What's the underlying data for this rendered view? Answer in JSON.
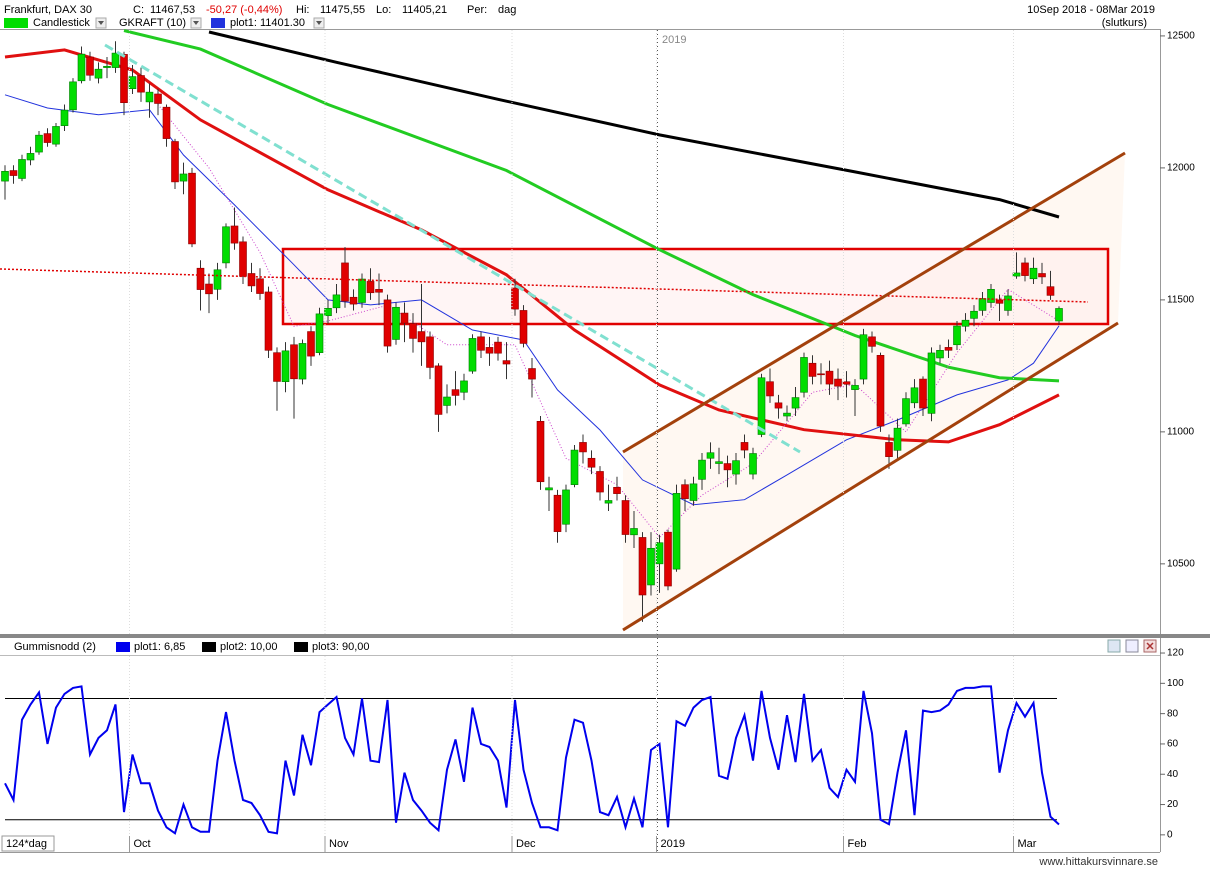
{
  "header": {
    "title": "Frankfurt, DAX 30",
    "close_label": "C:",
    "close": "11467,53",
    "change": "-50,27 (-0,44%)",
    "high_label": "Hi:",
    "high": "11475,55",
    "low_label": "Lo:",
    "low": "11405,21",
    "period_label": "Per:",
    "period": "dag",
    "date_range": "10Sep 2018 - 08Mar 2019",
    "price_basis": "(slutkurs)",
    "indicator": "GKRAFT (10)"
  },
  "chart_data": [
    {
      "type": "candlestick",
      "name": "Candlestick",
      "up_color": "#00dd00",
      "down_color": "#e00000",
      "open": [
        11950,
        11990,
        11960,
        12030,
        12060,
        12130,
        12090,
        12160,
        12220,
        12330,
        12420,
        12340,
        12380,
        12380,
        12430,
        12300,
        12350,
        12250,
        12280,
        12230,
        12100,
        11950,
        11980,
        11620,
        11560,
        11540,
        11640,
        11780,
        11720,
        11600,
        11580,
        11530,
        11300,
        11190,
        11330,
        11200,
        11380,
        11300,
        11440,
        11470,
        11640,
        11510,
        11490,
        11570,
        11540,
        11500,
        11350,
        11450,
        11410,
        11380,
        11360,
        11250,
        11100,
        11160,
        11150,
        11230,
        11360,
        11320,
        11340,
        11270,
        11545,
        11460,
        11240,
        11040,
        10780,
        10760,
        10650,
        10800,
        10960,
        10900,
        10850,
        10730,
        10790,
        10740,
        10610,
        10600,
        10420,
        10500,
        10620,
        10480,
        10800,
        10740,
        10820,
        10900,
        10880,
        10880,
        10840,
        10960,
        10840,
        10990,
        11190,
        11110,
        11060,
        11090,
        11150,
        11260,
        11220,
        11230,
        11200,
        11190,
        11160,
        11200,
        11360,
        11290,
        10960,
        10930,
        11030,
        11110,
        11200,
        11070,
        11280,
        11320,
        11330,
        11400,
        11430,
        11460,
        11490,
        11500,
        11460,
        11590,
        11640,
        11580,
        11600,
        11550,
        11420
      ],
      "high": [
        12010,
        12010,
        12050,
        12080,
        12140,
        12150,
        12170,
        12240,
        12340,
        12460,
        12440,
        12400,
        12420,
        12480,
        12440,
        12390,
        12380,
        12320,
        12300,
        12240,
        12110,
        12020,
        12000,
        11650,
        11600,
        11640,
        11790,
        11850,
        11740,
        11640,
        11620,
        11550,
        11320,
        11340,
        11360,
        11350,
        11400,
        11470,
        11500,
        11560,
        11700,
        11540,
        11600,
        11620,
        11600,
        11520,
        11490,
        11490,
        11450,
        11560,
        11380,
        11260,
        11180,
        11230,
        11220,
        11370,
        11380,
        11360,
        11360,
        11340,
        11580,
        11480,
        11280,
        11060,
        10830,
        10780,
        10800,
        10950,
        10990,
        10930,
        10870,
        10800,
        10830,
        10760,
        10700,
        10620,
        10620,
        10610,
        10630,
        10800,
        10820,
        10830,
        10920,
        10960,
        10940,
        10910,
        10920,
        10990,
        10940,
        11220,
        11240,
        11140,
        11100,
        11170,
        11300,
        11290,
        11260,
        11270,
        11240,
        11230,
        11200,
        11390,
        11380,
        11300,
        10990,
        11050,
        11150,
        11200,
        11210,
        11320,
        11330,
        11350,
        11420,
        11450,
        11480,
        11530,
        11560,
        11520,
        11540,
        11680,
        11660,
        11660,
        11640,
        11610,
        11475.55
      ],
      "low": [
        11880,
        11940,
        11950,
        12010,
        12050,
        12080,
        12080,
        12140,
        12210,
        12320,
        12330,
        12320,
        12340,
        12360,
        12200,
        12280,
        12250,
        12190,
        12200,
        12080,
        11920,
        11900,
        11700,
        11460,
        11450,
        11500,
        11620,
        11690,
        11560,
        11530,
        11500,
        11280,
        11080,
        11150,
        11050,
        11180,
        11250,
        11290,
        11410,
        11450,
        11470,
        11460,
        11470,
        11500,
        11480,
        11300,
        11330,
        11340,
        11300,
        11250,
        11200,
        11000,
        11070,
        11100,
        11120,
        11220,
        11280,
        11250,
        11270,
        11200,
        11440,
        11320,
        11130,
        10780,
        10700,
        10580,
        10620,
        10790,
        10880,
        10840,
        10740,
        10700,
        10740,
        10580,
        10560,
        10280,
        10380,
        10390,
        10400,
        10470,
        10700,
        10720,
        10780,
        10860,
        10840,
        10790,
        10800,
        10900,
        10820,
        10980,
        11110,
        11050,
        11040,
        11060,
        11130,
        11180,
        11180,
        11140,
        11120,
        11130,
        11060,
        11180,
        11300,
        11000,
        10860,
        10900,
        11020,
        11090,
        11060,
        11040,
        11260,
        11280,
        11310,
        11380,
        11400,
        11440,
        11470,
        11420,
        11440,
        11580,
        11570,
        11560,
        11560,
        11500,
        11405.21
      ],
      "close": [
        11987,
        11971,
        12032,
        12055,
        12124,
        12096,
        12157,
        12219,
        12326,
        12431,
        12351,
        12374,
        12385,
        12435,
        12247,
        12346,
        12287,
        12287,
        12244,
        12111,
        11947,
        11977,
        11712,
        11539,
        11523,
        11614,
        11777,
        11715,
        11589,
        11553,
        11524,
        11309,
        11191,
        11307,
        11201,
        11335,
        11287,
        11447,
        11468,
        11519,
        11495,
        11484,
        11579,
        11527,
        11529,
        11325,
        11472,
        11412,
        11354,
        11341,
        11244,
        11066,
        11132,
        11138,
        11193,
        11354,
        11309,
        11298,
        11298,
        11257,
        11465,
        11335,
        11200,
        10811,
        10788,
        10622,
        10780,
        10931,
        10924,
        10866,
        10772,
        10740,
        10766,
        10611,
        10634,
        10382,
        10559,
        10580,
        10416,
        10767,
        10747,
        10803,
        10893,
        10921,
        10887,
        10856,
        10891,
        10931,
        10918,
        11205,
        11136,
        11090,
        11071,
        11130,
        11282,
        11210,
        11218,
        11181,
        11173,
        11180,
        11176,
        11368,
        11324,
        11022,
        10906,
        11014,
        11126,
        11167,
        11090,
        11299,
        11309,
        11309,
        11401,
        11423,
        11457,
        11505,
        11540,
        11487,
        11515,
        11602,
        11592,
        11620,
        11587,
        11517,
        11467.53
      ],
      "series": [
        {
          "name": "plot1: 11401.30",
          "color": "#2233dd",
          "x": [
            0,
            5,
            11,
            17,
            21,
            27,
            34,
            38,
            43,
            49,
            55,
            61,
            65,
            70,
            75,
            81,
            87,
            92,
            99,
            105,
            112,
            118,
            121,
            124
          ],
          "values": [
            12277,
            12227,
            12201,
            12220,
            12049,
            11860,
            11633,
            11500,
            11481,
            11500,
            11386,
            11348,
            11159,
            11007,
            10818,
            10724,
            10743,
            10837,
            10970,
            11045,
            11140,
            11197,
            11260,
            11401.3
          ]
        },
        {
          "color": "#e01010",
          "x": [
            0,
            7,
            15,
            23,
            38,
            49,
            59,
            67,
            77,
            84,
            94,
            105,
            111,
            117,
            124
          ],
          "values": [
            12420,
            12447,
            12371,
            12182,
            11917,
            11765,
            11595,
            11386,
            11178,
            11083,
            11008,
            10970,
            10962,
            11027,
            11140
          ]
        },
        {
          "color": "#22cc22",
          "x": [
            14,
            23,
            38,
            59,
            77,
            88,
            100,
            111,
            117,
            124
          ],
          "values": [
            12520,
            12450,
            12240,
            11990,
            11690,
            11520,
            11365,
            11245,
            11205,
            11193
          ]
        },
        {
          "color": "#000000",
          "x": [
            24,
            39,
            58,
            77,
            100,
            117,
            124
          ],
          "values": [
            12515,
            12400,
            12260,
            12125,
            11985,
            11880,
            11814
          ]
        },
        {
          "color": "#cc44cc",
          "style": "dotted",
          "x": [
            18,
            24,
            30,
            34,
            38,
            45,
            52,
            60,
            66,
            72,
            77,
            82,
            88,
            95,
            100,
            106,
            112,
            118,
            124
          ],
          "values": [
            12240,
            12000,
            11680,
            11400,
            11420,
            11480,
            11330,
            11330,
            10900,
            10800,
            10600,
            10760,
            10880,
            11150,
            11180,
            11000,
            11300,
            11540,
            11420
          ]
        }
      ],
      "ylim": [
        10238,
        12530
      ],
      "yticks": [
        10500,
        11000,
        11500,
        12000,
        12500
      ]
    },
    {
      "type": "line",
      "title": "Gummisnodd (2)",
      "categories": [
        null,
        null,
        null,
        null,
        null,
        null,
        null,
        null,
        null,
        null,
        null,
        null,
        null,
        null,
        null,
        "Oct",
        null,
        null,
        null,
        null,
        null,
        null,
        null,
        null,
        null,
        null,
        null,
        null,
        null,
        null,
        null,
        null,
        null,
        null,
        null,
        null,
        null,
        null,
        "Nov",
        null,
        null,
        null,
        null,
        null,
        null,
        null,
        null,
        null,
        null,
        null,
        null,
        null,
        null,
        null,
        null,
        null,
        null,
        null,
        null,
        null,
        "Dec",
        null,
        null,
        null,
        null,
        null,
        null,
        null,
        null,
        null,
        null,
        null,
        null,
        null,
        null,
        null,
        null,
        "2019",
        null,
        null,
        null,
        null,
        null,
        null,
        null,
        null,
        null,
        null,
        null,
        null,
        null,
        null,
        null,
        null,
        null,
        null,
        null,
        null,
        null,
        "Feb",
        null,
        null,
        null,
        null,
        null,
        null,
        null,
        null,
        null,
        null,
        null,
        null,
        null,
        null,
        null,
        null,
        null,
        null,
        null,
        "Mar",
        null,
        null,
        null,
        null,
        null
      ],
      "series": [
        {
          "name": "plot1: 6,85",
          "color": "#0000ee",
          "values": [
            34,
            23,
            76,
            86,
            94,
            60,
            84,
            93,
            97,
            98,
            53,
            64,
            69,
            86,
            15,
            53,
            34,
            34,
            16,
            5,
            1,
            20,
            5,
            2,
            2,
            49,
            81,
            49,
            23,
            21,
            13,
            2,
            1,
            49,
            26,
            66,
            46,
            81,
            86,
            91,
            64,
            53,
            90,
            49,
            48,
            89,
            8,
            41,
            23,
            16,
            8,
            3,
            43,
            63,
            35,
            84,
            60,
            58,
            49,
            18,
            89,
            43,
            21,
            5,
            5,
            3,
            51,
            76,
            74,
            49,
            15,
            13,
            25,
            5,
            24,
            5,
            56,
            60,
            5,
            75,
            72,
            84,
            89,
            91,
            39,
            37,
            64,
            79,
            49,
            95,
            64,
            43,
            79,
            48,
            93,
            49,
            56,
            31,
            25,
            43,
            35,
            95,
            67,
            10,
            7,
            41,
            69,
            13,
            82,
            81,
            82,
            86,
            95,
            97,
            97,
            98,
            98,
            41,
            69,
            87,
            78,
            87,
            41,
            12,
            6.85
          ]
        }
      ],
      "hlines": [
        {
          "name": "plot2: 10,00",
          "color": "#000000",
          "value": 10
        },
        {
          "name": "plot3: 90,00",
          "color": "#000000",
          "value": 90
        }
      ],
      "ylim": [
        -10,
        122
      ],
      "yticks": [
        0,
        20,
        40,
        60,
        80,
        100,
        120
      ]
    }
  ],
  "footer": {
    "period_count": "124*dag",
    "source": "www.hittakursvinnare.se"
  }
}
